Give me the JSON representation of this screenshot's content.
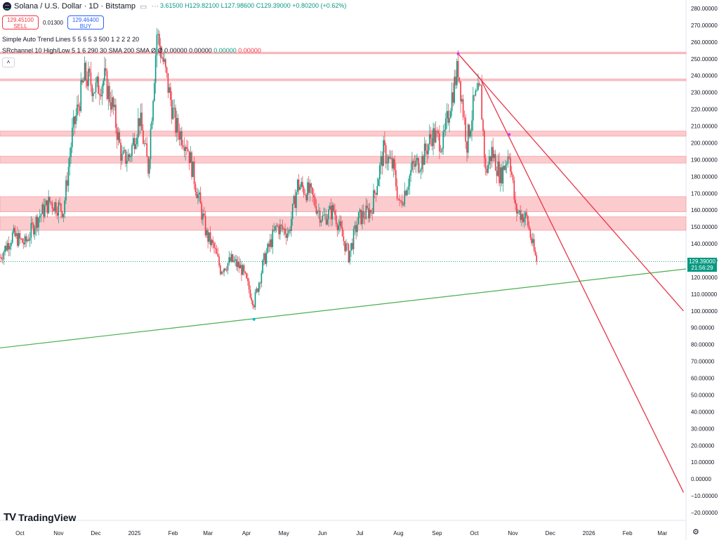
{
  "header": {
    "symbol_title": "Solana / U.S. Dollar · 1D · Bitstamp",
    "ohlc_open": "3.61500",
    "ohlc_high": "H129.82100",
    "ohlc_low": "L127.98600",
    "ohlc_close": "C129.39000",
    "ohlc_change": "+0.80200 (+0.62%)"
  },
  "trade": {
    "sell_price": "129.45100",
    "sell_label": "SELL",
    "spread": "0.01300",
    "buy_price": "129.46400",
    "buy_label": "BUY"
  },
  "indicators": [
    {
      "text": "Simple Auto Trend Lines 5 5 5 5 3 500 1 2 2 2 20"
    },
    {
      "text": "SRchannel 10 High/Low 5 1 6 290 30 SMA 200 SMA  Ø  Ø  0.00000  0.00000",
      "g": "0.00000",
      "r": "0.00000"
    }
  ],
  "branding": {
    "logo_text": "TradingView"
  },
  "price_label": {
    "price": "129.39000",
    "countdown": "21:56:29"
  },
  "colors": {
    "up": "#089981",
    "down": "#f23645",
    "zone": "#f7a1a6",
    "support": "#4caf50",
    "trend": "#e5384a"
  },
  "chart_data": {
    "type": "candlestick",
    "title": "Solana / U.S. Dollar · 1D · Bitstamp",
    "y_ticks": [
      "280.00000",
      "270.00000",
      "260.00000",
      "250.00000",
      "240.00000",
      "230.00000",
      "220.00000",
      "210.00000",
      "200.00000",
      "190.00000",
      "180.00000",
      "170.00000",
      "160.00000",
      "150.00000",
      "140.00000",
      "130.00000",
      "120.00000",
      "110.00000",
      "100.00000",
      "90.00000",
      "80.00000",
      "70.00000",
      "60.00000",
      "50.00000",
      "40.00000",
      "30.00000",
      "20.00000",
      "10.00000",
      "0.00000",
      "−10.00000",
      "−20.00000"
    ],
    "ylim": [
      -20,
      280
    ],
    "x_ticks": [
      "Oct",
      "Nov",
      "Dec",
      "2025",
      "Feb",
      "Mar",
      "Apr",
      "May",
      "Jun",
      "Jul",
      "Aug",
      "Sep",
      "Oct",
      "Nov",
      "Dec",
      "2026",
      "Feb",
      "Mar"
    ],
    "x_tick_dates": [
      "2024-10-01",
      "2024-11-01",
      "2024-12-01",
      "2025-01-01",
      "2025-02-01",
      "2025-03-01",
      "2025-04-01",
      "2025-05-01",
      "2025-06-01",
      "2025-07-01",
      "2025-08-01",
      "2025-09-01",
      "2025-10-01",
      "2025-11-01",
      "2025-12-01",
      "2026-01-01",
      "2026-02-01",
      "2026-03-01"
    ],
    "x_range": [
      "2024-09-15",
      "2026-03-20"
    ],
    "last_price": 129.39,
    "sr_zones": [
      [
        253,
        254
      ],
      [
        237,
        238
      ],
      [
        204,
        207
      ],
      [
        188,
        192
      ],
      [
        159,
        168
      ],
      [
        148,
        156
      ]
    ],
    "support_line": {
      "start": [
        "2024-09-15",
        78
      ],
      "end": [
        "2026-03-20",
        125
      ],
      "anchor": [
        "2025-04-07",
        95
      ]
    },
    "trend_lines": [
      {
        "start": [
          "2025-09-18",
          253
        ],
        "end": [
          "2026-03-18",
          100
        ]
      },
      {
        "start": [
          "2025-10-06",
          238
        ],
        "end": [
          "2026-03-18",
          -8
        ]
      },
      {
        "start": [
          "2025-09-18",
          253
        ],
        "end": [
          "2025-10-06",
          238
        ]
      }
    ],
    "trend_points": [
      [
        "2025-09-18",
        253
      ],
      [
        "2025-10-29",
        205
      ]
    ],
    "closes": [
      [
        "2024-09-15",
        132
      ],
      [
        "2024-09-25",
        145
      ],
      [
        "2024-10-05",
        140
      ],
      [
        "2024-10-15",
        155
      ],
      [
        "2024-10-25",
        165
      ],
      [
        "2024-11-05",
        160
      ],
      [
        "2024-11-12",
        205
      ],
      [
        "2024-11-22",
        240
      ],
      [
        "2024-12-01",
        232
      ],
      [
        "2024-12-08",
        238
      ],
      [
        "2024-12-15",
        220
      ],
      [
        "2024-12-22",
        190
      ],
      [
        "2024-12-28",
        192
      ],
      [
        "2025-01-05",
        215
      ],
      [
        "2025-01-12",
        185
      ],
      [
        "2025-01-19",
        265
      ],
      [
        "2025-01-25",
        245
      ],
      [
        "2025-02-03",
        210
      ],
      [
        "2025-02-12",
        200
      ],
      [
        "2025-02-20",
        172
      ],
      [
        "2025-02-28",
        145
      ],
      [
        "2025-03-06",
        137
      ],
      [
        "2025-03-11",
        125
      ],
      [
        "2025-03-20",
        130
      ],
      [
        "2025-03-28",
        125
      ],
      [
        "2025-04-07",
        105
      ],
      [
        "2025-04-15",
        130
      ],
      [
        "2025-04-25",
        150
      ],
      [
        "2025-05-05",
        147
      ],
      [
        "2025-05-12",
        175
      ],
      [
        "2025-05-22",
        170
      ],
      [
        "2025-06-01",
        155
      ],
      [
        "2025-06-10",
        160
      ],
      [
        "2025-06-22",
        133
      ],
      [
        "2025-06-30",
        155
      ],
      [
        "2025-07-10",
        160
      ],
      [
        "2025-07-20",
        195
      ],
      [
        "2025-07-28",
        185
      ],
      [
        "2025-08-02",
        162
      ],
      [
        "2025-08-12",
        185
      ],
      [
        "2025-08-20",
        190
      ],
      [
        "2025-08-28",
        205
      ],
      [
        "2025-09-06",
        200
      ],
      [
        "2025-09-12",
        225
      ],
      [
        "2025-09-18",
        245
      ],
      [
        "2025-09-25",
        200
      ],
      [
        "2025-10-01",
        225
      ],
      [
        "2025-10-06",
        230
      ],
      [
        "2025-10-10",
        182
      ],
      [
        "2025-10-15",
        195
      ],
      [
        "2025-10-22",
        180
      ],
      [
        "2025-10-29",
        195
      ],
      [
        "2025-11-03",
        160
      ],
      [
        "2025-11-07",
        158
      ],
      [
        "2025-11-12",
        155
      ],
      [
        "2025-11-17",
        138
      ],
      [
        "2025-11-20",
        129.39
      ]
    ]
  }
}
